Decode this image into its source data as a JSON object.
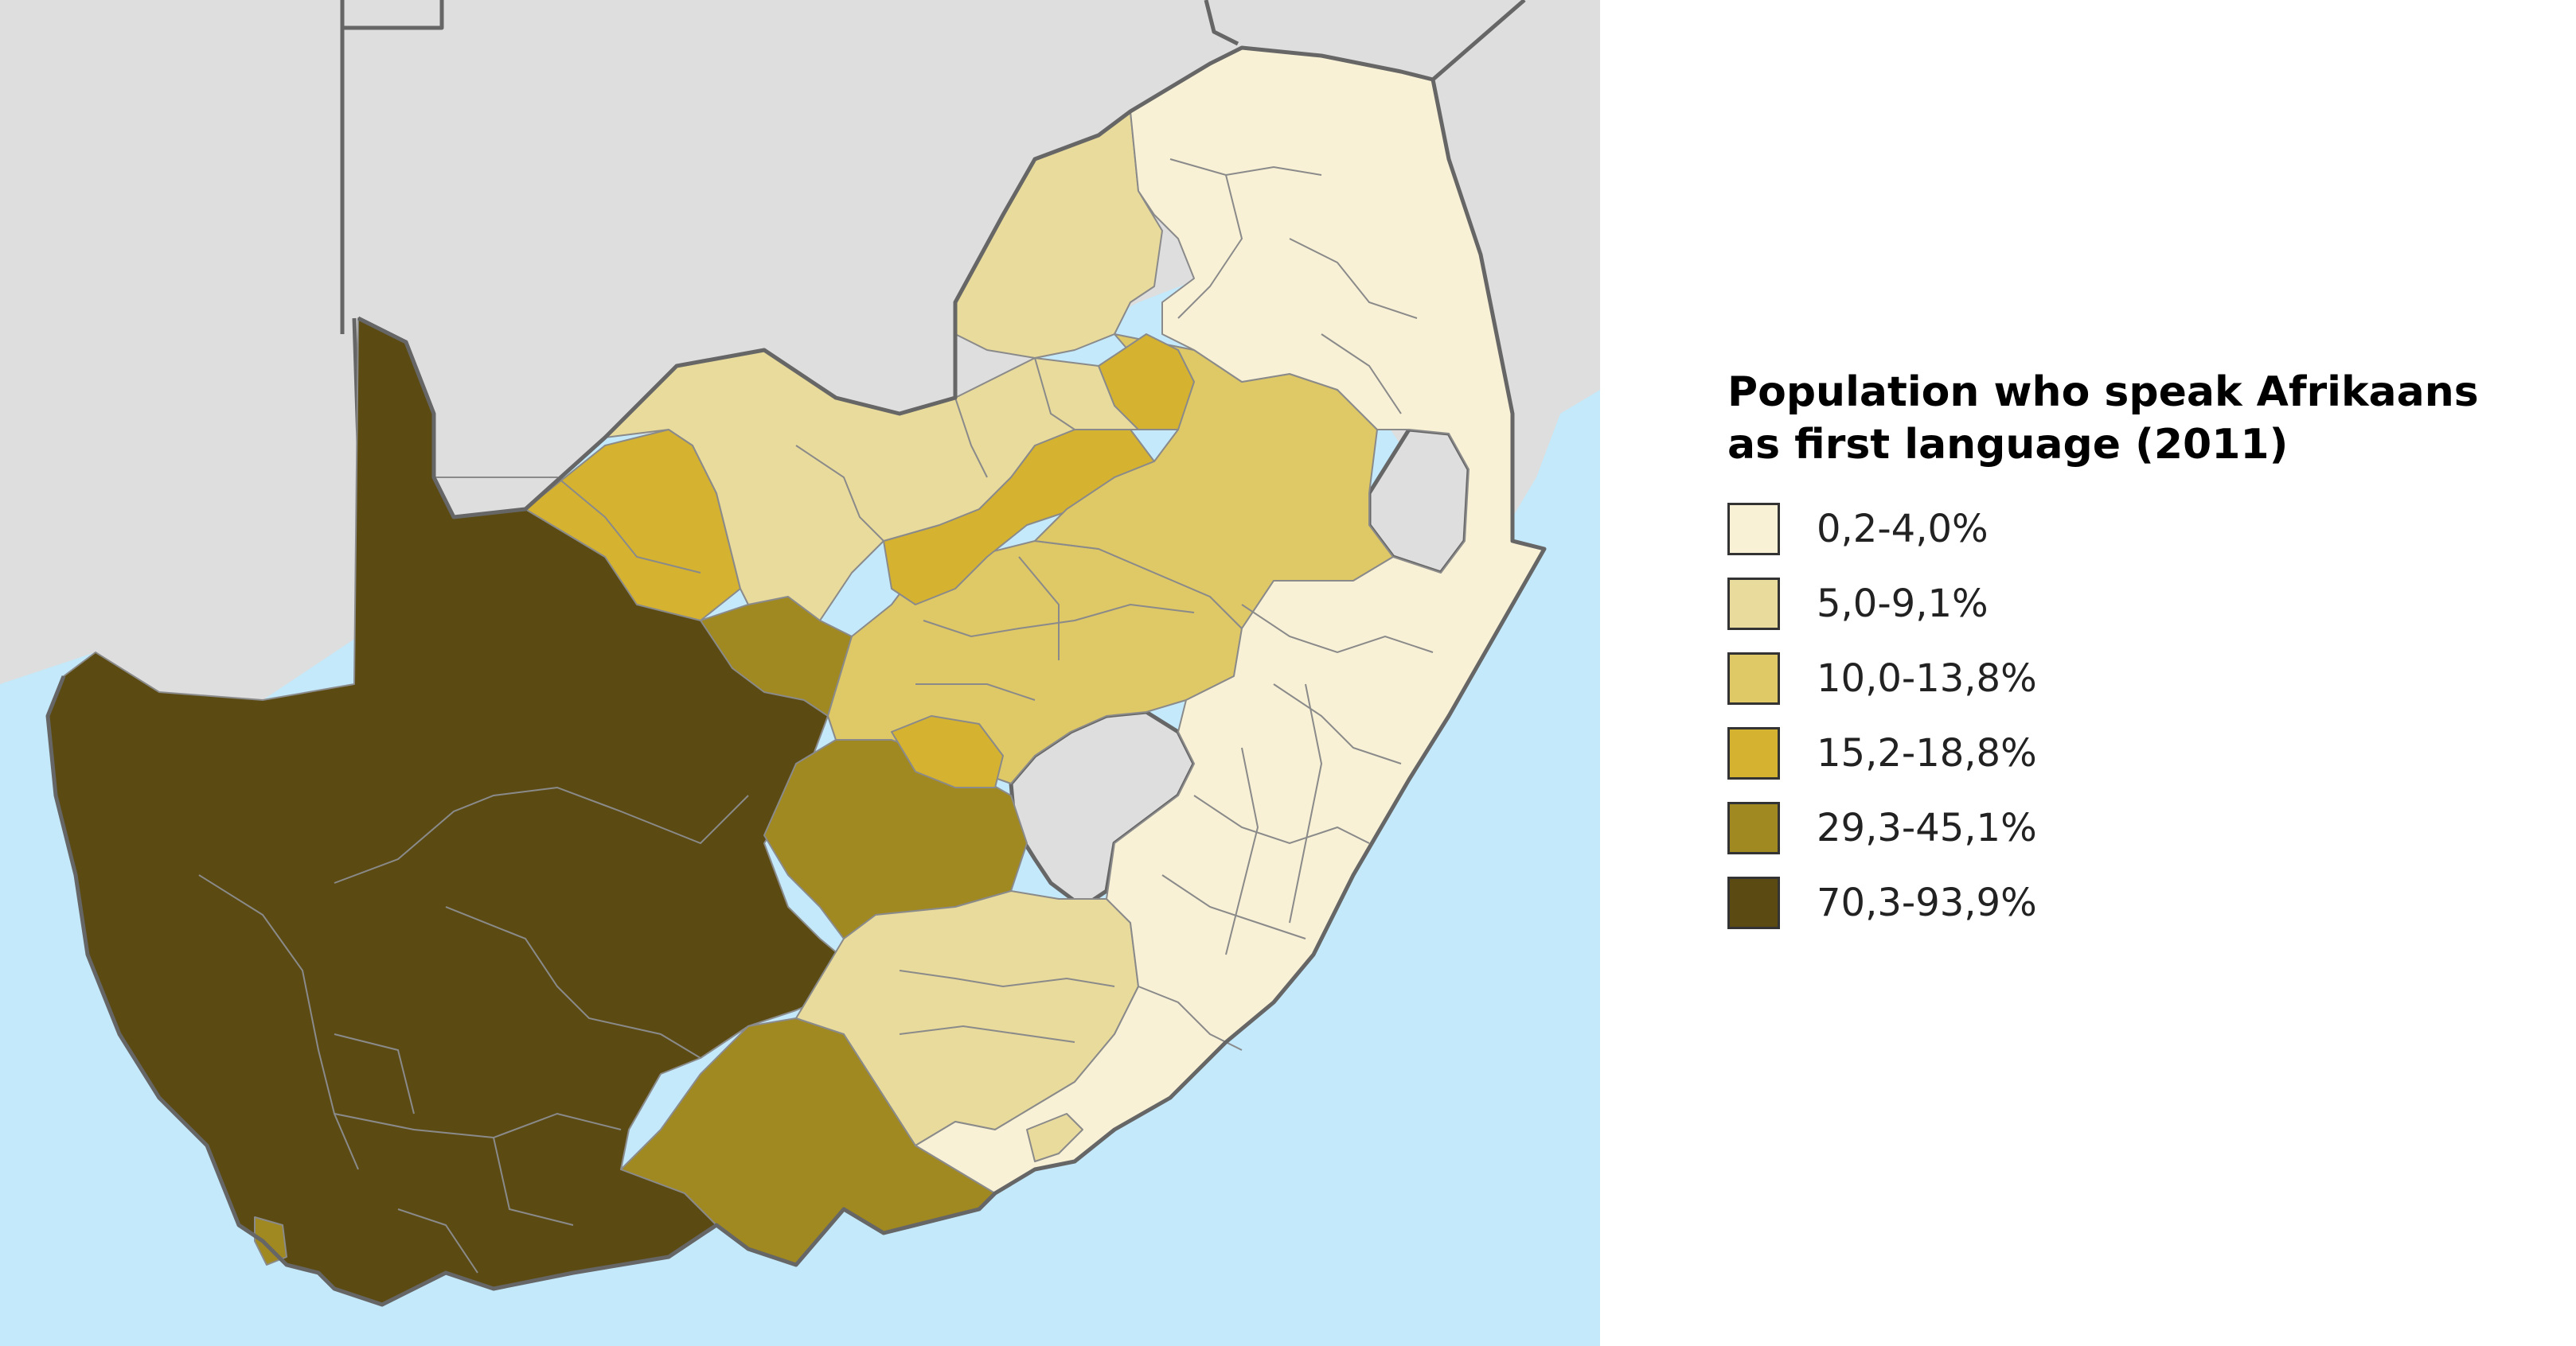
{
  "legend": {
    "title_line1": "Population who speak Afrikaans",
    "title_line2": "as first language (2011)",
    "items": [
      {
        "label": "0,2-4,0%",
        "color": "#f8f1d6"
      },
      {
        "label": "5,0-9,1%",
        "color": "#e8db9c"
      },
      {
        "label": "10,0-13,8%",
        "color": "#dfc866"
      },
      {
        "label": "15,2-18,8%",
        "color": "#d5b330"
      },
      {
        "label": "29,3-45,1%",
        "color": "#a18922"
      },
      {
        "label": "70,3-93,9%",
        "color": "#5b4b13"
      }
    ]
  },
  "map": {
    "ocean_color": "#c3e9fb",
    "neighbor_color": "#dedede",
    "border_color": "#666666"
  }
}
